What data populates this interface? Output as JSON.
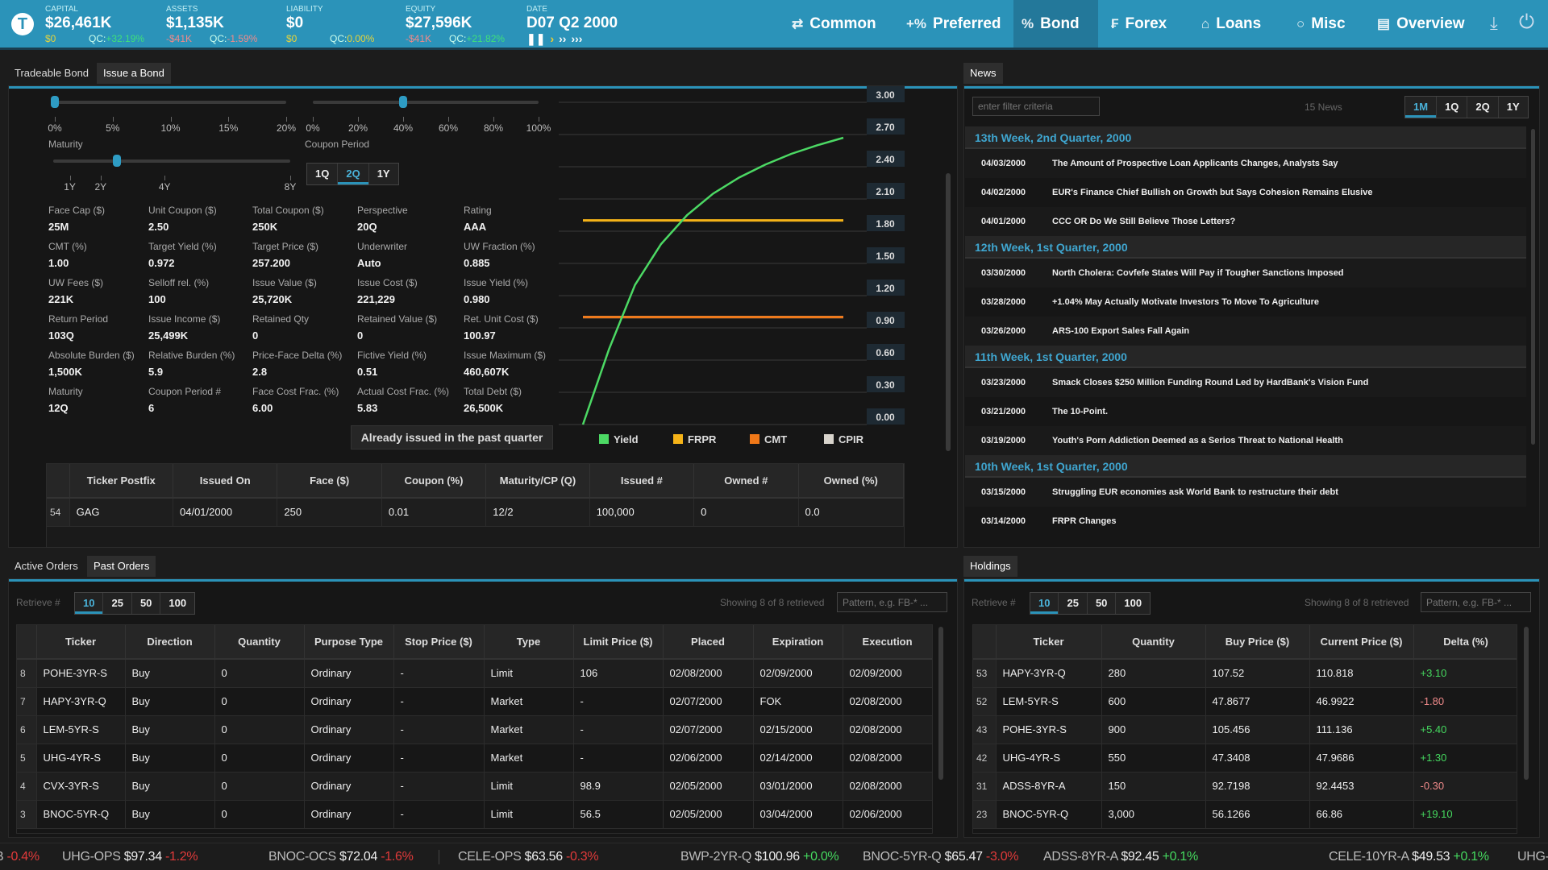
{
  "header": {
    "logo": "T",
    "stats": [
      {
        "label": "CAPITAL",
        "value": "$26,461K",
        "sub": "$0",
        "sub_color": "y",
        "qc_label": "QC:",
        "qc": "+32.19%",
        "qc_color": "g"
      },
      {
        "label": "ASSETS",
        "value": "$1,135K",
        "sub": "-$41K",
        "sub_color": "r",
        "qc_label": "QC:",
        "qc": "-1.59%",
        "qc_color": "r"
      },
      {
        "label": "LIABILITY",
        "value": "$0",
        "sub": "$0",
        "sub_color": "y",
        "qc_label": "QC:",
        "qc": "0.00%",
        "qc_color": "y"
      },
      {
        "label": "EQUITY",
        "value": "$27,596K",
        "sub": "-$41K",
        "sub_color": "r",
        "qc_label": "QC:",
        "qc": "+21.82%",
        "qc_color": "g"
      }
    ],
    "date": {
      "label": "DATE",
      "value": "D07 Q2 2000",
      "controls": [
        "pause",
        "play",
        "fast",
        "fastest"
      ]
    },
    "nav": [
      {
        "label": "Common",
        "icon": "swap-icon",
        "glyph": "⇄"
      },
      {
        "label": "Preferred",
        "icon": "percent-plus-icon",
        "glyph": "+%"
      },
      {
        "label": "Bond",
        "icon": "percent-icon",
        "glyph": "%",
        "active": true
      },
      {
        "label": "Forex",
        "icon": "forex-icon",
        "glyph": "₣"
      },
      {
        "label": "Loans",
        "icon": "house-dollar-icon",
        "glyph": "⌂"
      },
      {
        "label": "Misc",
        "icon": "circle-icon",
        "glyph": "○"
      },
      {
        "label": "Overview",
        "icon": "document-icon",
        "glyph": "▤"
      }
    ],
    "download_icon": "⤓",
    "power_icon": "⏻"
  },
  "bond_panel": {
    "tabs": [
      "Tradeable Bond",
      "Issue a Bond"
    ],
    "active_tab": 1,
    "slider1": {
      "ticks": [
        "0%",
        "5%",
        "10%",
        "15%",
        "20%"
      ],
      "value_percent": 0
    },
    "slider2": {
      "ticks": [
        "0%",
        "20%",
        "40%",
        "60%",
        "80%",
        "100%"
      ],
      "value_percent": 40
    },
    "maturity": {
      "label": "Maturity",
      "ticks": [
        "1Y",
        "2Y",
        "4Y",
        "8Y"
      ],
      "value": "3Y"
    },
    "coupon_period": {
      "label": "Coupon Period",
      "options": [
        "1Q",
        "2Q",
        "1Y"
      ],
      "selected": "2Q"
    },
    "stats": [
      [
        [
          "Face Cap ($)",
          "25M"
        ],
        [
          "Unit Coupon ($)",
          "2.50"
        ],
        [
          "Total Coupon ($)",
          "250K"
        ],
        [
          "Perspective",
          "20Q"
        ],
        [
          "Rating",
          "AAA"
        ]
      ],
      [
        [
          "CMT (%)",
          "1.00"
        ],
        [
          "Target Yield (%)",
          "0.972"
        ],
        [
          "Target Price ($)",
          "257.200"
        ],
        [
          "Underwriter",
          "Auto"
        ],
        [
          "UW Fraction (%)",
          "0.885"
        ]
      ],
      [
        [
          "UW Fees ($)",
          "221K"
        ],
        [
          "Selloff rel. (%)",
          "100"
        ],
        [
          "Issue Value ($)",
          "25,720K"
        ],
        [
          "Issue Cost ($)",
          "221,229"
        ],
        [
          "Issue Yield (%)",
          "0.980"
        ]
      ],
      [
        [
          "Return Period",
          "103Q"
        ],
        [
          "Issue Income ($)",
          "25,499K"
        ],
        [
          "Retained Qty",
          "0"
        ],
        [
          "Retained Value ($)",
          "0"
        ],
        [
          "Ret. Unit Cost ($)",
          "100.97"
        ]
      ],
      [
        [
          "Absolute Burden ($)",
          "1,500K"
        ],
        [
          "Relative Burden (%)",
          "5.9"
        ],
        [
          "Price-Face Delta (%)",
          "2.8"
        ],
        [
          "Fictive Yield (%)",
          "0.51"
        ],
        [
          "Issue Maximum ($)",
          "460,607K"
        ]
      ],
      [
        [
          "Maturity",
          "12Q"
        ],
        [
          "Coupon Period #",
          "6"
        ],
        [
          "Face Cost Frac. (%)",
          "6.00"
        ],
        [
          "Actual Cost Frac. (%)",
          "5.83"
        ],
        [
          "Total Debt ($)",
          "26,500K"
        ]
      ]
    ],
    "issue_button": "Already issued in the past quarter",
    "issued_table": {
      "columns": [
        "",
        "Ticker Postfix",
        "Issued On",
        "Face ($)",
        "Coupon (%)",
        "Maturity/CP (Q)",
        "Issued #",
        "Owned #",
        "Owned (%)"
      ],
      "rows": [
        [
          "54",
          "GAG",
          "04/01/2000",
          "250",
          "0.01",
          "12/2",
          "100,000",
          "0",
          "0.0"
        ]
      ]
    }
  },
  "chart_data": {
    "type": "line",
    "ylim": [
      0,
      3
    ],
    "yticks": [
      "0.00",
      "0.30",
      "0.60",
      "0.90",
      "1.20",
      "1.50",
      "1.80",
      "2.10",
      "2.40",
      "2.70",
      "3.00"
    ],
    "grid": true,
    "legend": "bottom",
    "series": [
      {
        "name": "Yield",
        "color": "#4cd964",
        "values": [
          0,
          0.7,
          1.3,
          1.68,
          1.95,
          2.15,
          2.3,
          2.42,
          2.52,
          2.6,
          2.67
        ]
      },
      {
        "name": "FRPR",
        "color": "#f5b318",
        "values": [
          1.9,
          1.9
        ]
      },
      {
        "name": "CMT",
        "color": "#f07818",
        "values": [
          1.0,
          1.0
        ]
      },
      {
        "name": "CPIR",
        "color": "#d8d4cc",
        "values": [
          1.0,
          1.0
        ]
      }
    ]
  },
  "news": {
    "tab": "News",
    "filter_placeholder": "enter filter criteria",
    "count": "15 News",
    "ranges": [
      "1M",
      "1Q",
      "2Q",
      "1Y"
    ],
    "selected_range": "1M",
    "groups": [
      {
        "header": "13th Week, 2nd Quarter, 2000",
        "items": [
          [
            "04/03/2000",
            "The Amount of Prospective Loan Applicants Changes, Analysts Say"
          ],
          [
            "04/02/2000",
            "EUR's Finance Chief Bullish on Growth but Says Cohesion Remains Elusive"
          ],
          [
            "04/01/2000",
            "CCC OR Do We Still Believe Those Letters?"
          ]
        ]
      },
      {
        "header": "12th Week, 1st Quarter, 2000",
        "items": [
          [
            "03/30/2000",
            "North Cholera: Covfefe States Will Pay if Tougher Sanctions Imposed"
          ],
          [
            "03/28/2000",
            "+1.04% May Actually Motivate Investors To Move To Agriculture"
          ],
          [
            "03/26/2000",
            "ARS-100 Export Sales Fall Again"
          ]
        ]
      },
      {
        "header": "11th Week, 1st Quarter, 2000",
        "items": [
          [
            "03/23/2000",
            "Smack Closes $250 Million Funding Round Led by HardBank's Vision Fund"
          ],
          [
            "03/21/2000",
            "The 10-Point."
          ],
          [
            "03/19/2000",
            "Youth's Porn Addiction Deemed as a Serios Threat to National Health"
          ]
        ]
      },
      {
        "header": "10th Week, 1st Quarter, 2000",
        "items": [
          [
            "03/15/2000",
            "Struggling EUR economies ask World Bank to restructure their debt"
          ],
          [
            "03/14/2000",
            "FRPR Changes"
          ]
        ]
      }
    ]
  },
  "orders": {
    "tabs": [
      "Active Orders",
      "Past Orders"
    ],
    "active_tab": 1,
    "retrieve_label": "Retrieve #",
    "retrieve_options": [
      "10",
      "25",
      "50",
      "100"
    ],
    "retrieve_selected": "10",
    "showing": "Showing 8 of 8 retrieved",
    "pattern_placeholder": "Pattern, e.g. FB-* ...",
    "columns": [
      "",
      "Ticker",
      "Direction",
      "Quantity",
      "Purpose Type",
      "Stop Price ($)",
      "Type",
      "Limit Price ($)",
      "Placed",
      "Expiration",
      "Execution"
    ],
    "rows": [
      [
        "8",
        "POHE-3YR-S",
        "Buy",
        "0",
        "Ordinary",
        "-",
        "Limit",
        "106",
        "02/08/2000",
        "02/09/2000",
        "02/09/2000"
      ],
      [
        "7",
        "HAPY-3YR-Q",
        "Buy",
        "0",
        "Ordinary",
        "-",
        "Market",
        "-",
        "02/07/2000",
        "FOK",
        "02/08/2000"
      ],
      [
        "6",
        "LEM-5YR-S",
        "Buy",
        "0",
        "Ordinary",
        "-",
        "Market",
        "-",
        "02/07/2000",
        "02/15/2000",
        "02/08/2000"
      ],
      [
        "5",
        "UHG-4YR-S",
        "Buy",
        "0",
        "Ordinary",
        "-",
        "Market",
        "-",
        "02/06/2000",
        "02/14/2000",
        "02/08/2000"
      ],
      [
        "4",
        "CVX-3YR-S",
        "Buy",
        "0",
        "Ordinary",
        "-",
        "Limit",
        "98.9",
        "02/05/2000",
        "03/01/2000",
        "02/08/2000"
      ],
      [
        "3",
        "BNOC-5YR-Q",
        "Buy",
        "0",
        "Ordinary",
        "-",
        "Limit",
        "56.5",
        "02/05/2000",
        "03/04/2000",
        "02/06/2000"
      ]
    ]
  },
  "holdings": {
    "tab": "Holdings",
    "retrieve_label": "Retrieve #",
    "retrieve_options": [
      "10",
      "25",
      "50",
      "100"
    ],
    "retrieve_selected": "10",
    "showing": "Showing 8 of 8 retrieved",
    "pattern_placeholder": "Pattern, e.g. FB-* ...",
    "columns": [
      "",
      "Ticker",
      "Quantity",
      "Buy Price ($)",
      "Current Price ($)",
      "Delta (%)"
    ],
    "rows": [
      [
        "53",
        "HAPY-3YR-Q",
        "280",
        "107.52",
        "110.818",
        "+3.10"
      ],
      [
        "52",
        "LEM-5YR-S",
        "600",
        "47.8677",
        "46.9922",
        "-1.80"
      ],
      [
        "43",
        "POHE-3YR-S",
        "900",
        "105.456",
        "111.136",
        "+5.40"
      ],
      [
        "42",
        "UHG-4YR-S",
        "550",
        "47.3408",
        "47.9686",
        "+1.30"
      ],
      [
        "31",
        "ADSS-8YR-A",
        "150",
        "92.7198",
        "92.4453",
        "-0.30"
      ],
      [
        "23",
        "BNOC-5YR-Q",
        "3,000",
        "56.1266",
        "66.86",
        "+19.10"
      ]
    ]
  },
  "ticker": [
    {
      "symbol": "B",
      "price": "",
      "change": "-0.4%"
    },
    {
      "symbol": "UHG-OPS",
      "price": "$97.34",
      "change": "-1.2%"
    },
    {
      "symbol": "BNOC-OCS",
      "price": "$72.04",
      "change": "-1.6%"
    },
    {
      "symbol": "CELE-OPS",
      "price": "$63.56",
      "change": "-0.3%"
    },
    {
      "symbol": "BWP-2YR-Q",
      "price": "$100.96",
      "change": "+0.0%"
    },
    {
      "symbol": "BNOC-5YR-Q",
      "price": "$65.47",
      "change": "-3.0%"
    },
    {
      "symbol": "ADSS-8YR-A",
      "price": "$92.45",
      "change": "+0.1%"
    },
    {
      "symbol": "CELE-10YR-A",
      "price": "$49.53",
      "change": "+0.1%"
    },
    {
      "symbol": "UHG-",
      "price": "",
      "change": ""
    }
  ]
}
